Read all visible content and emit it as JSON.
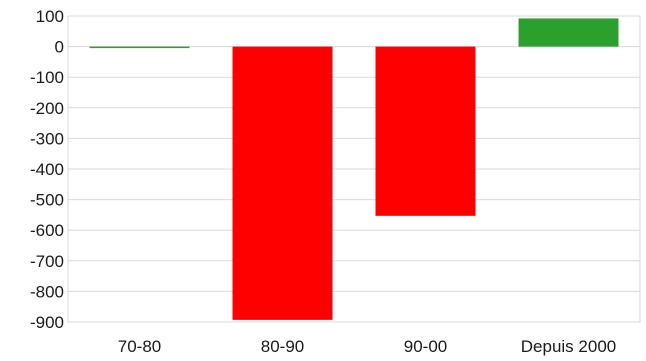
{
  "chart_data": {
    "type": "bar",
    "categories": [
      "70-80",
      "80-90",
      "90-00",
      "Depuis 2000"
    ],
    "values": [
      -1,
      -893,
      -553,
      92
    ],
    "ylim": [
      -900,
      100
    ],
    "yticks": [
      100,
      0,
      -100,
      -200,
      -300,
      -400,
      -500,
      -600,
      -700,
      -800,
      -900
    ],
    "grid": true,
    "legend": "none",
    "colors": {
      "negative": "#ff0000",
      "positive": "#2ca02c",
      "first_bar": "#2ca02c"
    }
  }
}
